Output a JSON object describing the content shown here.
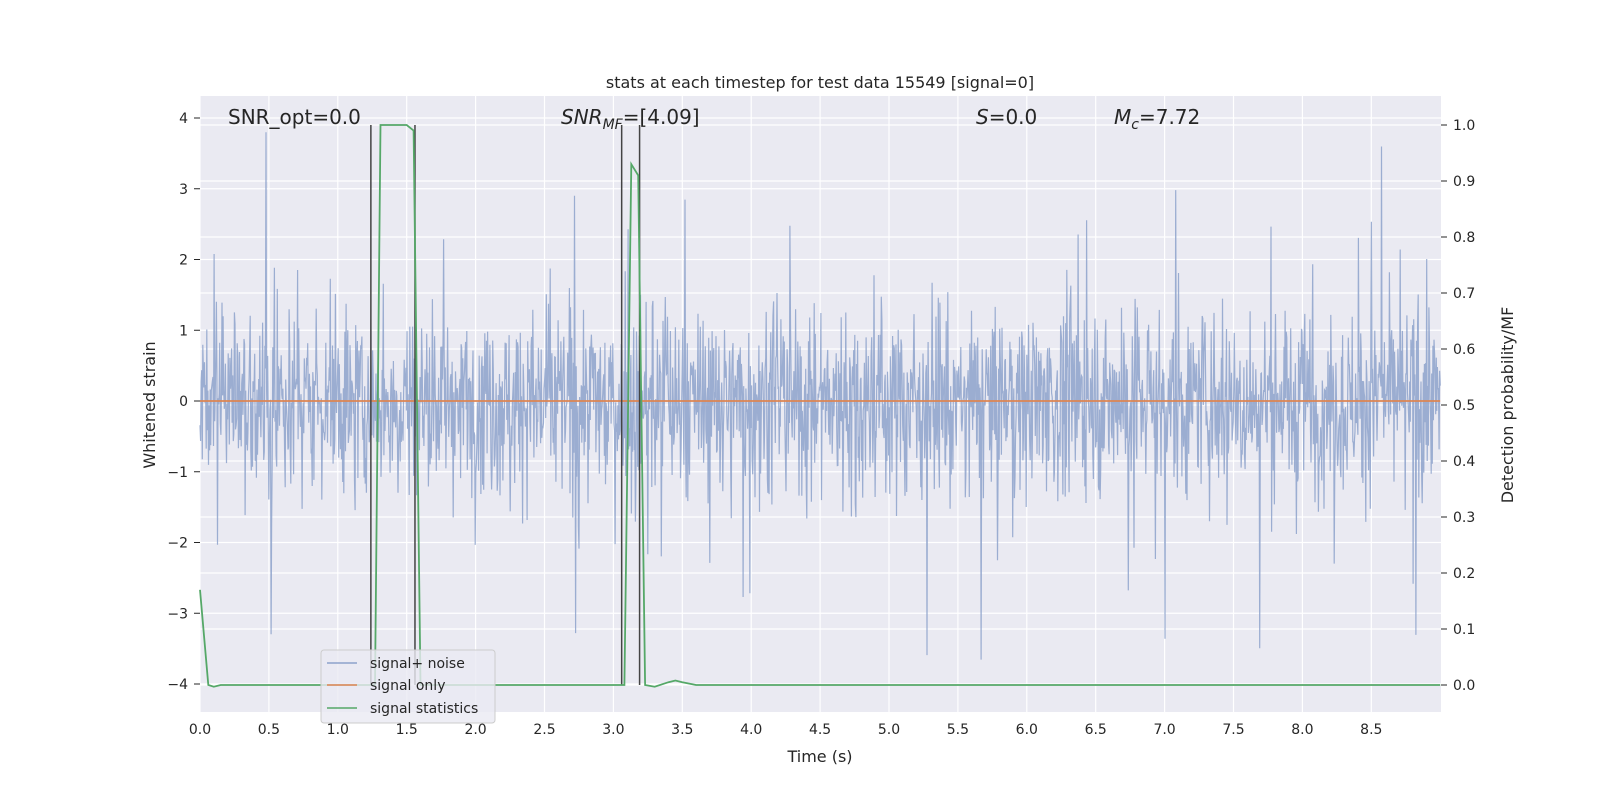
{
  "chart_data": {
    "type": "line",
    "title": "stats at each timestep for test data 15549 [signal=0]",
    "xlabel": "Time (s)",
    "ylabel": "Whitened strain",
    "ylabel_right": "Detection probability/MF",
    "xlim": [
      0,
      9.0
    ],
    "ylim": [
      -4.4,
      4.3
    ],
    "ylim_right": [
      -0.05,
      1.04
    ],
    "grid": true,
    "legend_position": "lower-left",
    "x_ticks": [
      "0.0",
      "0.5",
      "1.0",
      "1.5",
      "2.0",
      "2.5",
      "3.0",
      "3.5",
      "4.0",
      "4.5",
      "5.0",
      "5.5",
      "6.0",
      "6.5",
      "7.0",
      "7.5",
      "8.0",
      "8.5"
    ],
    "y_ticks": [
      "4",
      "3",
      "2",
      "1",
      "0",
      "−1",
      "−2",
      "−3",
      "−4"
    ],
    "y_right_ticks": [
      "1.0",
      "0.9",
      "0.8",
      "0.7",
      "0.6",
      "0.5",
      "0.4",
      "0.3",
      "0.2",
      "0.1",
      "0.0"
    ],
    "annotations": {
      "snr_opt": "SNR_opt=0.0",
      "snr_mf_main": "SNR",
      "snr_mf_sub": "MF",
      "snr_mf_value": "=[4.09]",
      "s_label": "S",
      "s_value": "=0.0",
      "mc_label": "M",
      "mc_sub": "c",
      "mc_value": "=7.72"
    },
    "vertical_markers": [
      1.24,
      1.56,
      3.06,
      3.19
    ],
    "noise_envelope": {
      "typical_amplitude": 1.5,
      "peak_max": 3.8,
      "peak_min": -4.0
    },
    "series": [
      {
        "name": "signal+ noise",
        "color": "#8da2cb",
        "axis": "left",
        "kind": "noise"
      },
      {
        "name": "signal only",
        "color": "#dd8452",
        "axis": "left",
        "x": [
          0,
          9.0
        ],
        "y": [
          0,
          0
        ]
      },
      {
        "name": "signal statistics",
        "color": "#55a868",
        "axis": "right",
        "x": [
          0.0,
          0.06,
          0.1,
          0.15,
          1.24,
          1.27,
          1.31,
          1.5,
          1.55,
          1.6,
          1.65,
          3.05,
          3.08,
          3.13,
          3.18,
          3.23,
          3.3,
          3.4,
          3.45,
          3.5,
          3.6,
          9.0
        ],
        "y": [
          0.17,
          0.0,
          -0.003,
          0.0,
          0.0,
          0.0,
          1.0,
          1.0,
          0.99,
          0.0,
          0.0,
          0.0,
          0.0,
          0.93,
          0.91,
          0.0,
          -0.003,
          0.005,
          0.008,
          0.005,
          0.0,
          0.0
        ]
      }
    ]
  }
}
